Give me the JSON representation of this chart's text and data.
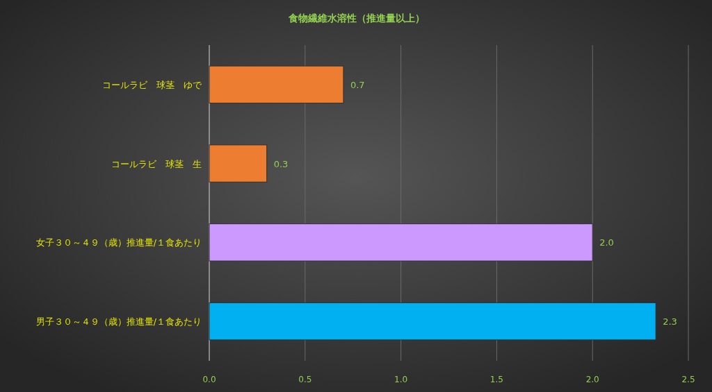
{
  "chart_data": {
    "type": "bar",
    "title": "食物繊維水溶性（推進量以上）",
    "orientation": "horizontal",
    "categories": [
      "コールラビ　球茎　ゆで",
      "コールラビ　球茎　生",
      "女子３０～４９（歳）推進量/１食あたり",
      "男子３０～４９（歳）推進量/１食あたり"
    ],
    "values": [
      0.7,
      0.3,
      2.0,
      2.33
    ],
    "value_labels": [
      "0.7",
      "0.3",
      "2.0",
      "2.3"
    ],
    "colors": [
      "#ed7d31",
      "#ed7d31",
      "#cc99ff",
      "#00b0f0"
    ],
    "xlim": [
      0,
      2.5
    ],
    "xticks": [
      {
        "value": 0,
        "label": "0.0"
      },
      {
        "value": 0.5,
        "label": "0.5"
      },
      {
        "value": 1,
        "label": "1.0"
      },
      {
        "value": 1.5,
        "label": "1.5"
      },
      {
        "value": 2,
        "label": "2.0"
      },
      {
        "value": 2.5,
        "label": "2.5"
      }
    ],
    "grid": "x"
  }
}
